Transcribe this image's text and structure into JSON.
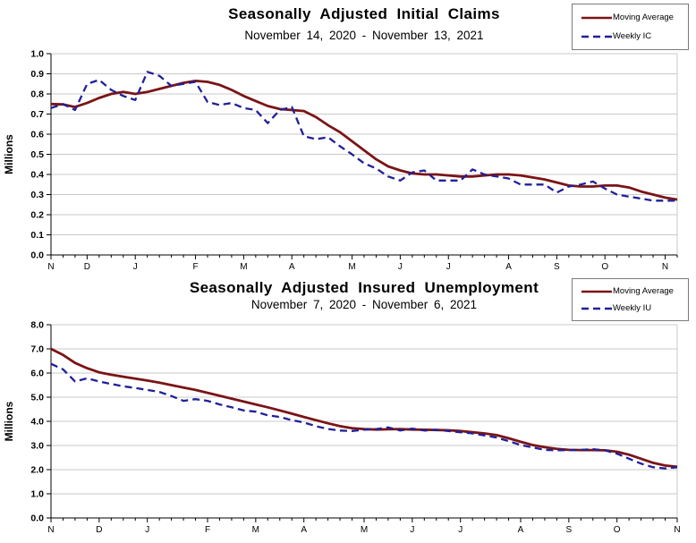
{
  "style": {
    "background": "#FFFFFF",
    "grid_color": "#C9C9C9",
    "axis_color": "#000000",
    "moving_average_color": "#7A1416",
    "weekly_color": "#20209A"
  },
  "chart_data": [
    {
      "type": "line",
      "title": "Seasonally Adjusted Initial Claims",
      "subtitle": "November 14, 2020 - November 13, 2021",
      "ylabel": "Millions",
      "ylim": [
        0.0,
        1.0
      ],
      "ytick_step": 0.1,
      "ytick_decimals": 1,
      "weeks": 53,
      "grid": "horizontal",
      "legend_position": "top-right",
      "x_month_labels": [
        "N",
        "D",
        "J",
        "F",
        "M",
        "A",
        "M",
        "J",
        "J",
        "A",
        "S",
        "O",
        "N"
      ],
      "x_month_label_weeks": [
        0,
        3,
        7,
        12,
        16,
        20,
        25,
        29,
        33,
        38,
        42,
        46,
        51
      ],
      "series": [
        {
          "name": "Moving Average",
          "style": "solid",
          "color": "#7A1416",
          "values": [
            0.75,
            0.748,
            0.735,
            0.755,
            0.78,
            0.8,
            0.81,
            0.8,
            0.81,
            0.825,
            0.84,
            0.855,
            0.865,
            0.86,
            0.845,
            0.82,
            0.79,
            0.765,
            0.74,
            0.725,
            0.72,
            0.715,
            0.685,
            0.645,
            0.61,
            0.565,
            0.52,
            0.475,
            0.44,
            0.42,
            0.405,
            0.4,
            0.4,
            0.395,
            0.39,
            0.39,
            0.395,
            0.4,
            0.4,
            0.395,
            0.385,
            0.375,
            0.36,
            0.345,
            0.34,
            0.34,
            0.345,
            0.345,
            0.335,
            0.315,
            0.3,
            0.285,
            0.275
          ]
        },
        {
          "name": "Weekly IC",
          "style": "dashed",
          "color": "#20209A",
          "values": [
            0.73,
            0.75,
            0.72,
            0.85,
            0.87,
            0.82,
            0.79,
            0.77,
            0.91,
            0.89,
            0.84,
            0.85,
            0.86,
            0.76,
            0.745,
            0.755,
            0.73,
            0.72,
            0.655,
            0.72,
            0.735,
            0.59,
            0.575,
            0.585,
            0.54,
            0.5,
            0.455,
            0.43,
            0.39,
            0.37,
            0.41,
            0.42,
            0.37,
            0.37,
            0.37,
            0.425,
            0.4,
            0.39,
            0.38,
            0.35,
            0.35,
            0.35,
            0.31,
            0.34,
            0.35,
            0.365,
            0.33,
            0.3,
            0.29,
            0.28,
            0.27,
            0.27,
            0.27
          ]
        }
      ]
    },
    {
      "type": "line",
      "title": "Seasonally Adjusted Insured Unemployment",
      "subtitle": "November 7, 2020 - November 6, 2021",
      "ylabel": "Millions",
      "ylim": [
        0.0,
        8.0
      ],
      "ytick_step": 1.0,
      "ytick_decimals": 1,
      "weeks": 53,
      "grid": "horizontal",
      "legend_position": "top-right",
      "x_month_labels": [
        "N",
        "D",
        "J",
        "F",
        "M",
        "A",
        "M",
        "J",
        "J",
        "A",
        "S",
        "O",
        "N"
      ],
      "x_month_label_weeks": [
        0,
        4,
        8,
        13,
        17,
        21,
        26,
        30,
        34,
        39,
        43,
        47,
        52
      ],
      "series": [
        {
          "name": "Moving Average",
          "style": "solid",
          "color": "#7A1416",
          "values": [
            7.0,
            6.75,
            6.42,
            6.2,
            6.03,
            5.93,
            5.85,
            5.77,
            5.69,
            5.6,
            5.5,
            5.4,
            5.3,
            5.18,
            5.06,
            4.94,
            4.82,
            4.7,
            4.58,
            4.45,
            4.32,
            4.18,
            4.05,
            3.92,
            3.8,
            3.72,
            3.68,
            3.66,
            3.67,
            3.68,
            3.66,
            3.65,
            3.64,
            3.63,
            3.6,
            3.55,
            3.5,
            3.43,
            3.3,
            3.15,
            3.02,
            2.93,
            2.86,
            2.82,
            2.81,
            2.81,
            2.8,
            2.74,
            2.62,
            2.45,
            2.28,
            2.17,
            2.12
          ]
        },
        {
          "name": "Weekly IU",
          "style": "dashed",
          "color": "#20209A",
          "values": [
            6.38,
            6.15,
            5.65,
            5.78,
            5.65,
            5.55,
            5.45,
            5.38,
            5.3,
            5.22,
            5.05,
            4.85,
            4.92,
            4.85,
            4.7,
            4.58,
            4.45,
            4.4,
            4.25,
            4.18,
            4.05,
            3.95,
            3.8,
            3.68,
            3.62,
            3.6,
            3.65,
            3.68,
            3.75,
            3.62,
            3.7,
            3.62,
            3.65,
            3.6,
            3.55,
            3.5,
            3.42,
            3.33,
            3.18,
            3.02,
            2.92,
            2.82,
            2.8,
            2.81,
            2.82,
            2.85,
            2.8,
            2.66,
            2.45,
            2.25,
            2.1,
            2.05,
            2.1
          ]
        }
      ]
    }
  ]
}
